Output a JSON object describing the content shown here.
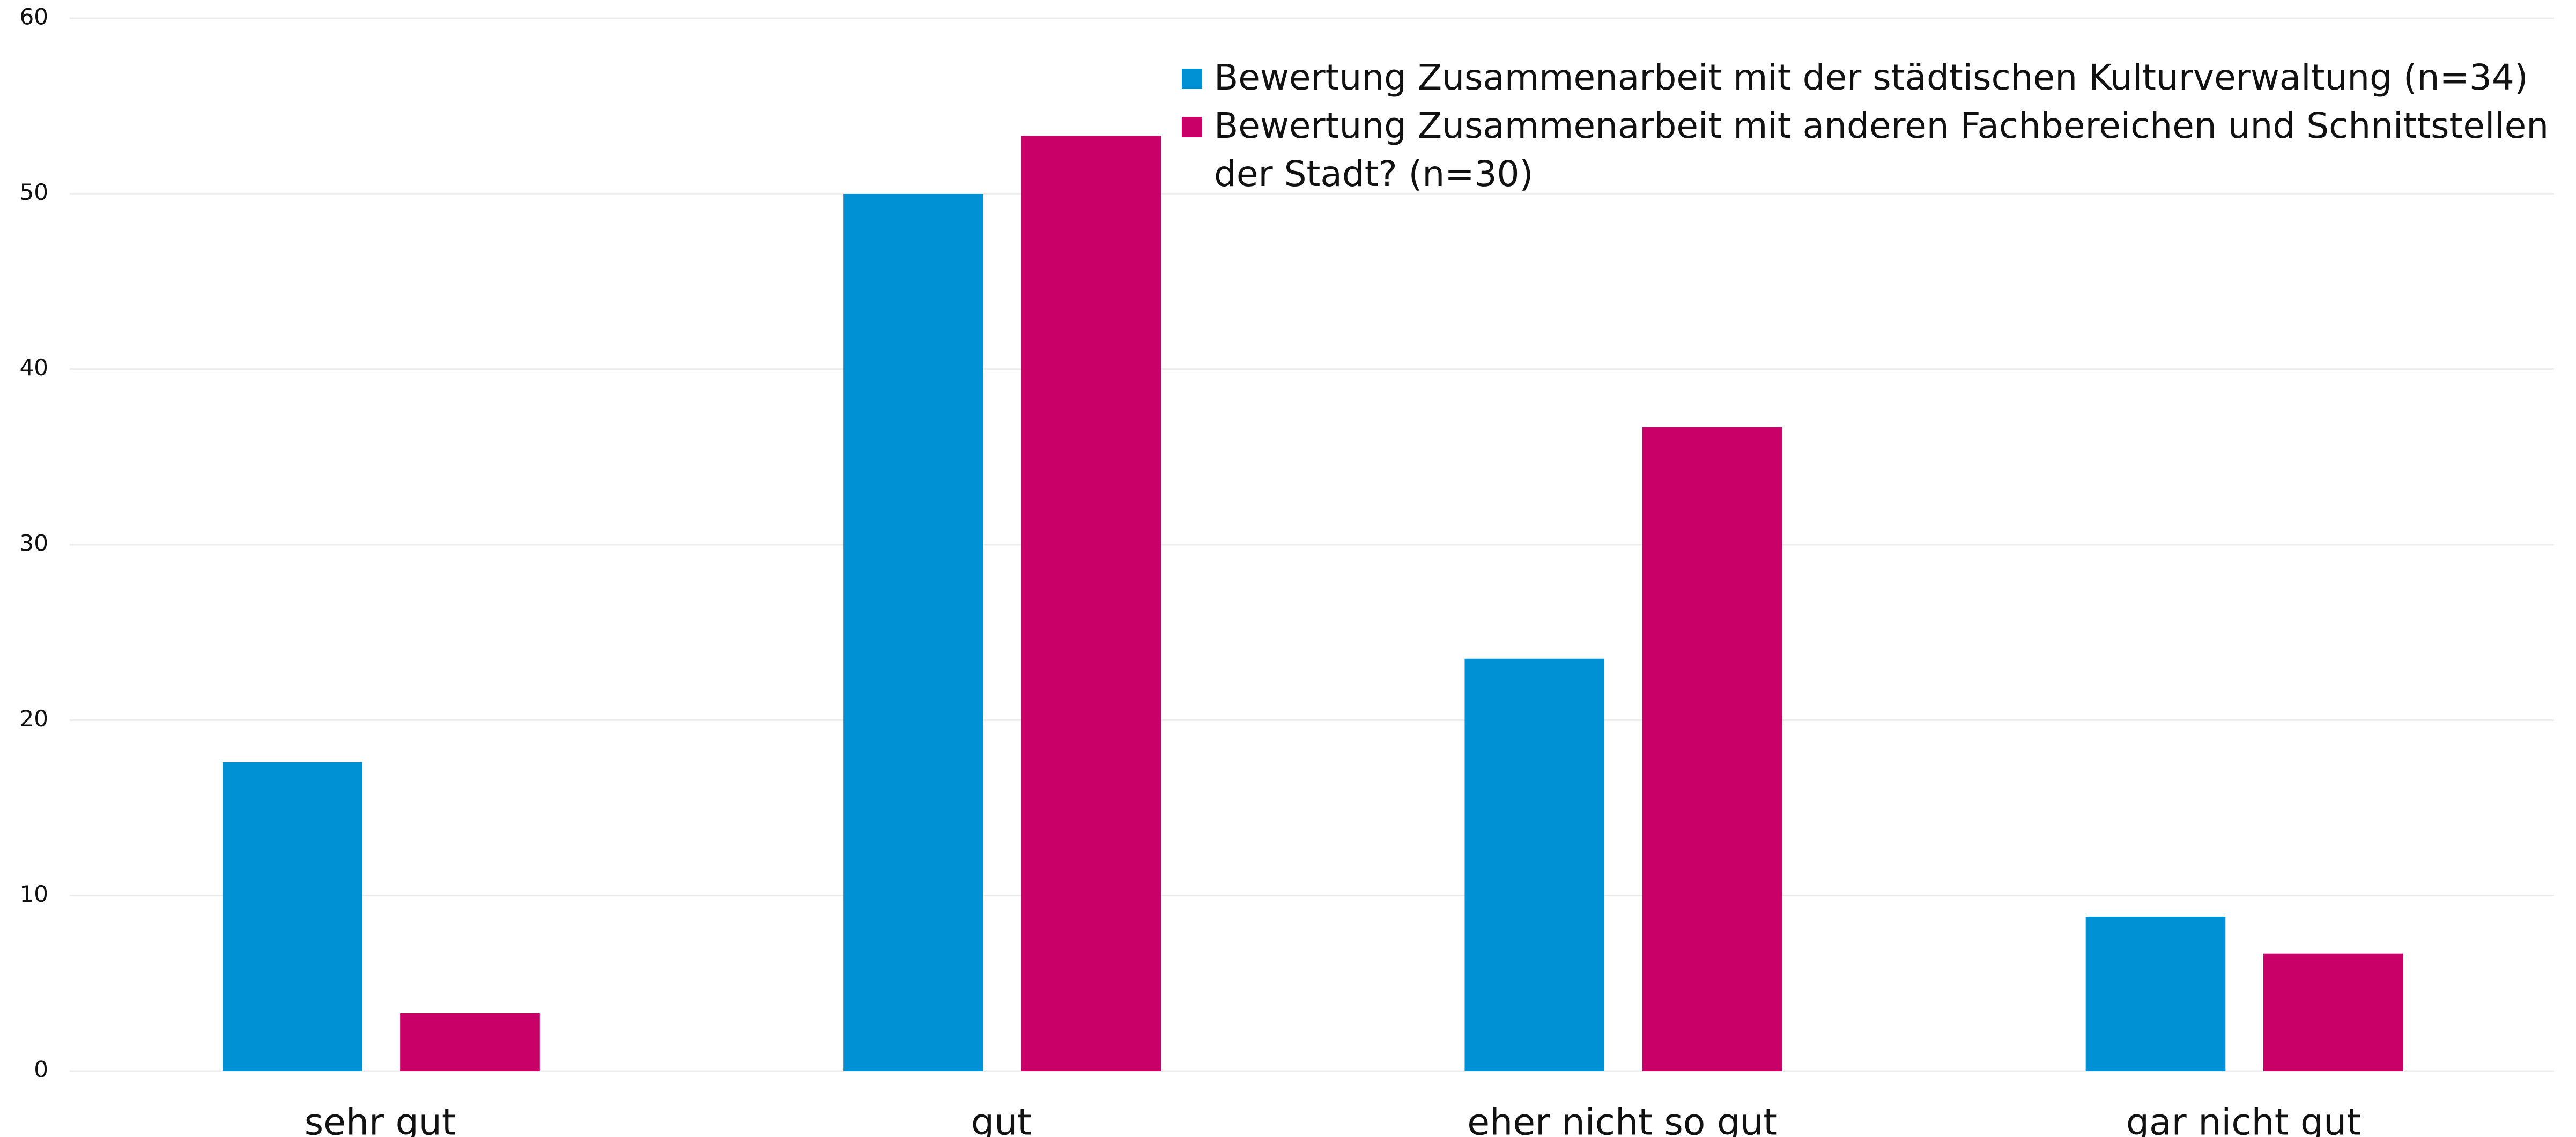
{
  "chart_data": {
    "type": "bar",
    "categories": [
      "sehr gut",
      "gut",
      "eher nicht so gut",
      "gar nicht gut"
    ],
    "series": [
      {
        "name": "Bewertung Zusammenarbeit mit der städtischen Kulturverwaltung (n=34)",
        "color": "#0091d5",
        "values": [
          17.6,
          50,
          23.5,
          8.8
        ]
      },
      {
        "name": "Bewertung Zusammenarbeit mit anderen Fachbereichen und Schnittstellen der Stadt? (n=30)",
        "color": "#c90068",
        "values": [
          3.3,
          53.3,
          36.7,
          6.7
        ]
      }
    ],
    "ylim": [
      0,
      60
    ],
    "yticks": [
      0,
      10,
      20,
      30,
      40,
      50,
      60
    ],
    "grid": true,
    "legend": "upper right"
  }
}
